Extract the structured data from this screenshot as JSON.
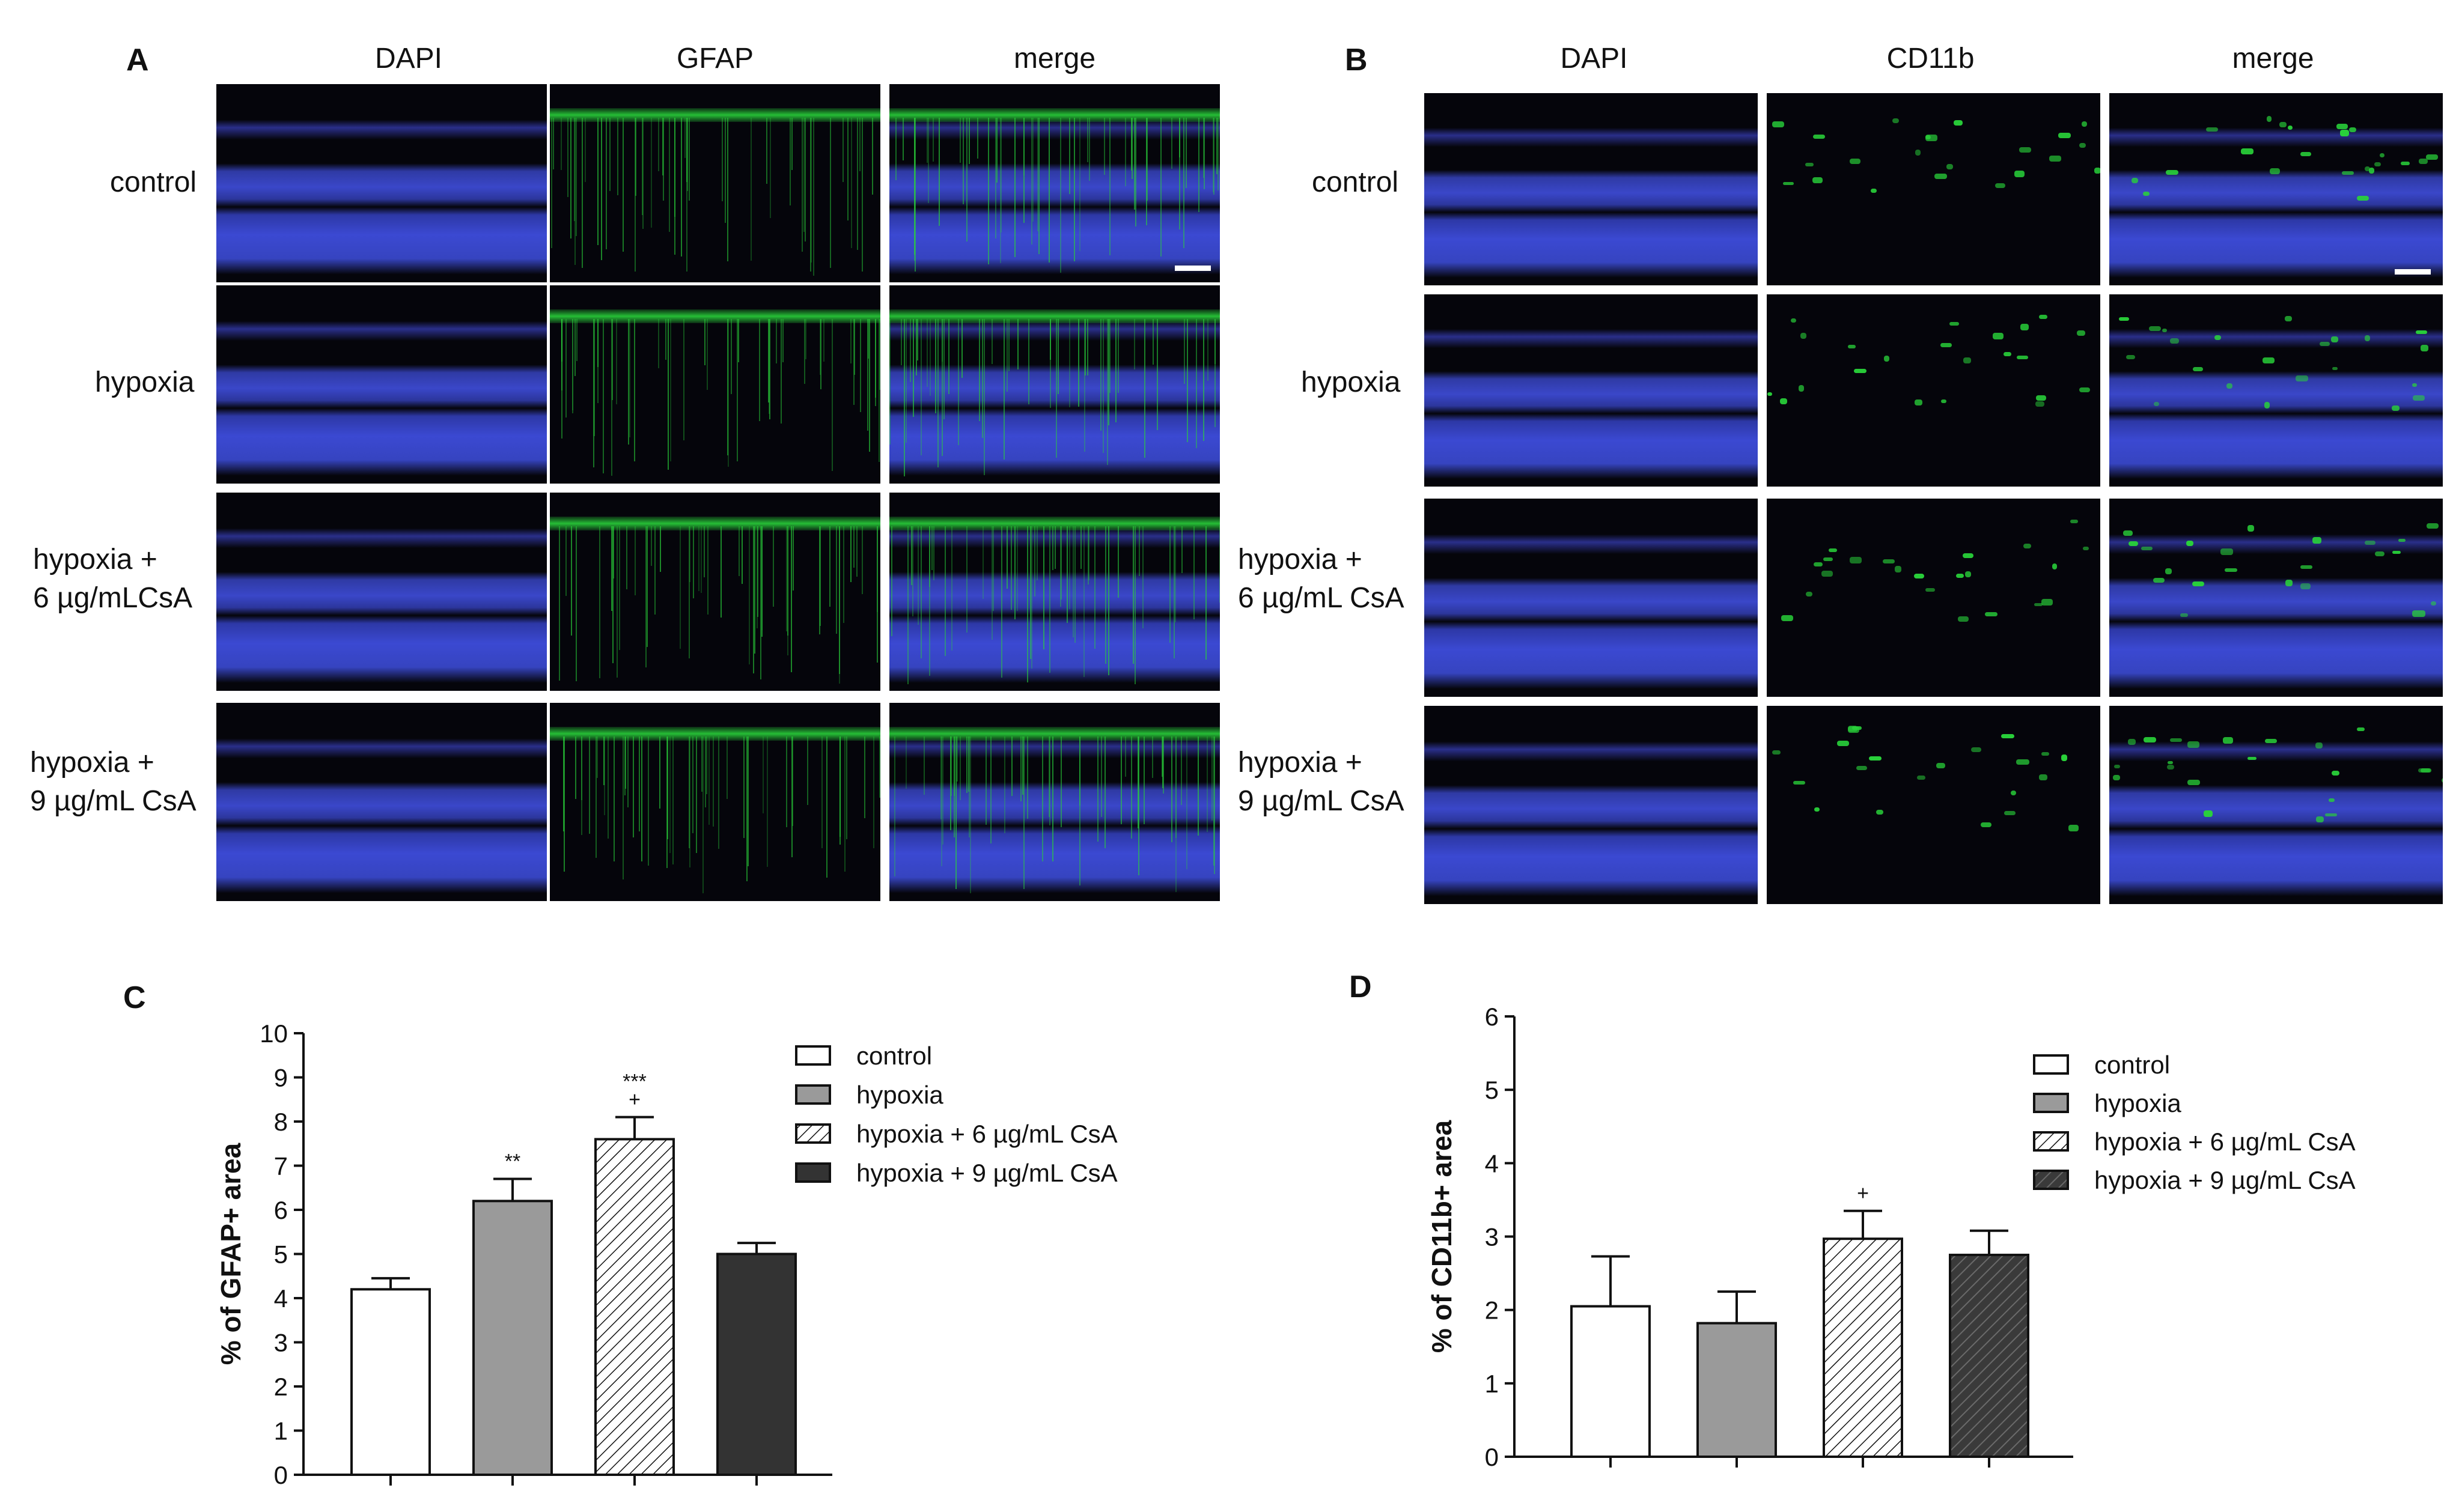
{
  "panel_a": {
    "letter": "A",
    "columns": [
      "DAPI",
      "GFAP",
      "merge"
    ],
    "rows": [
      "control",
      "hypoxia",
      "hypoxia +\n6 µg/mLCsA",
      "hypoxia +\n9 µg/mL CsA"
    ]
  },
  "panel_b": {
    "letter": "B",
    "columns": [
      "DAPI",
      "CD11b",
      "merge"
    ],
    "rows": [
      "control",
      "hypoxia",
      "hypoxia +\n6 µg/mL CsA",
      "hypoxia +\n9 µg/mL CsA"
    ]
  },
  "colors": {
    "dapi": "#3a47c9",
    "gfap": "#29d23a",
    "background": "#05050b",
    "hypoxia_bar": "#9a9a9a",
    "dark_bar": "#333333"
  },
  "chart_data": [
    {
      "panel": "C",
      "type": "bar",
      "categories": [
        "control",
        "hypoxia",
        "hypoxia + 6 µg/mL CsA",
        "hypoxia + 9 µg/mL CsA"
      ],
      "values": [
        4.2,
        6.2,
        7.6,
        5.0
      ],
      "errors": [
        0.25,
        0.5,
        0.5,
        0.25
      ],
      "annotations": [
        "",
        "**",
        "***\n+",
        ""
      ],
      "ylabel": "% of GFAP+ area",
      "ylim": [
        0,
        10
      ],
      "yticks": [
        0,
        1,
        2,
        3,
        4,
        5,
        6,
        7,
        8,
        9,
        10
      ],
      "legend": [
        "control",
        "hypoxia",
        "hypoxia + 6 µg/mL CsA",
        "hypoxia + 9 µg/mL CsA"
      ],
      "legend_position": "top-right"
    },
    {
      "panel": "D",
      "type": "bar",
      "categories": [
        "control",
        "hypoxia",
        "hypoxia + 6 µg/mL CsA",
        "hypoxia + 9 µg/mL CsA"
      ],
      "values": [
        2.05,
        1.82,
        2.97,
        2.75
      ],
      "errors": [
        0.68,
        0.43,
        0.38,
        0.33
      ],
      "annotations": [
        "",
        "",
        "+",
        ""
      ],
      "ylabel": "% of CD11b+ area",
      "ylim": [
        0,
        6
      ],
      "yticks": [
        0,
        1,
        2,
        3,
        4,
        5,
        6
      ],
      "legend": [
        "control",
        "hypoxia",
        "hypoxia + 6 µg/mL CsA",
        "hypoxia + 9 µg/mL CsA"
      ],
      "legend_position": "top-right"
    }
  ]
}
